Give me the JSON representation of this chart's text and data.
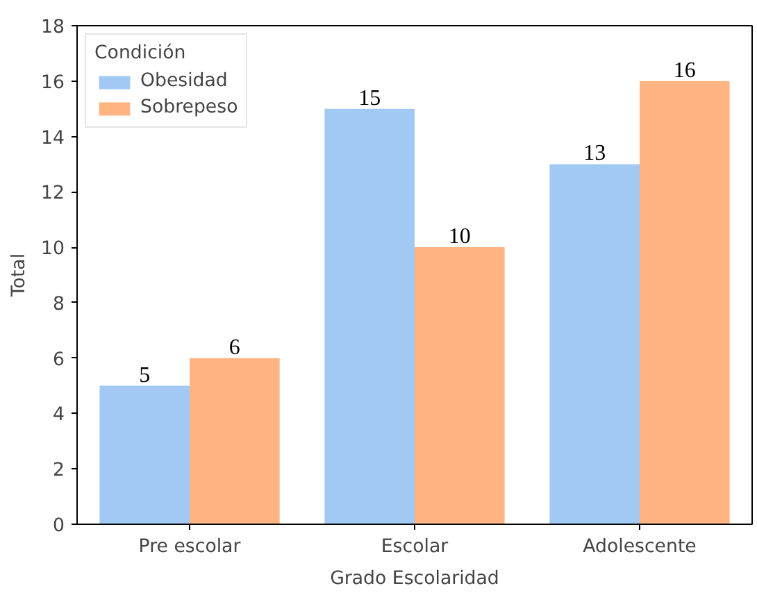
{
  "chart_data": {
    "type": "bar",
    "xlabel": "Grado Escolaridad",
    "ylabel": "Total",
    "legend_title": "Condición",
    "categories": [
      "Pre escolar",
      "Escolar",
      "Adolescente"
    ],
    "series": [
      {
        "name": "Obesidad",
        "color": "#a1c9f4",
        "values": [
          5,
          15,
          13
        ]
      },
      {
        "name": "Sobrepeso",
        "color": "#ffb482",
        "values": [
          6,
          10,
          16
        ]
      }
    ],
    "ylim": [
      0,
      18
    ],
    "yticks": [
      0,
      2,
      4,
      6,
      8,
      10,
      12,
      14,
      16,
      18
    ],
    "data_labels": true,
    "legend": "top left",
    "grid": false
  }
}
